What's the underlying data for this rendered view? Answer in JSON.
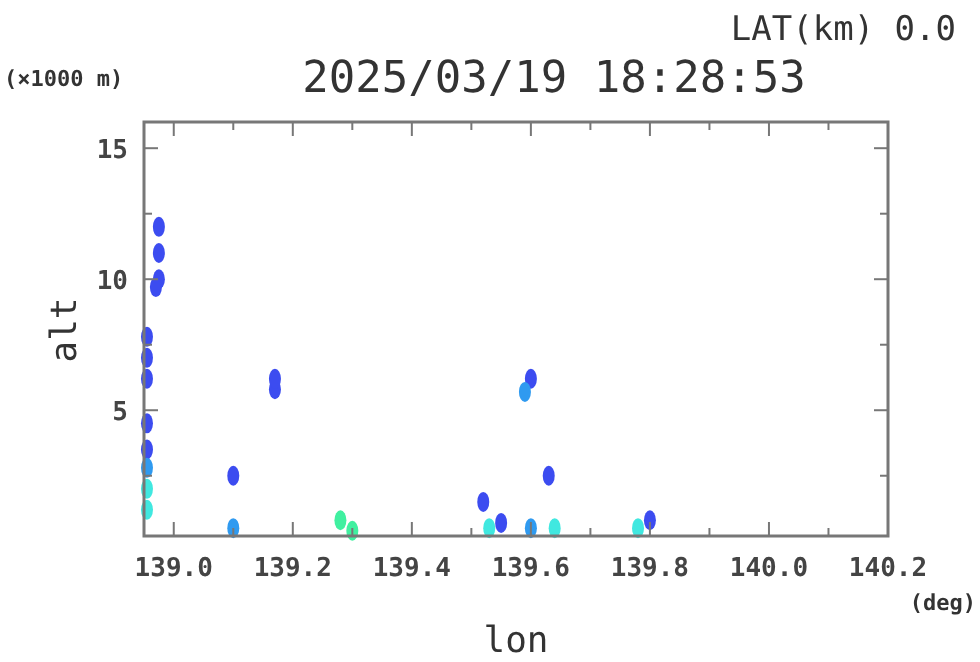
{
  "chart_data": {
    "type": "scatter",
    "title": "2025/03/19 18:28:53",
    "subtitle": "LAT(km) 0.0",
    "xlabel": "lon",
    "ylabel": "alt",
    "annotations": [
      "(×1000 m)",
      "(deg)"
    ],
    "xlim": [
      138.95,
      140.2
    ],
    "ylim": [
      0.2,
      16
    ],
    "xticks": [
      {
        "value": 139.0,
        "label": "139.0"
      },
      {
        "value": 139.1,
        "label": null
      },
      {
        "value": 139.2,
        "label": "139.2"
      },
      {
        "value": 139.3,
        "label": null
      },
      {
        "value": 139.4,
        "label": "139.4"
      },
      {
        "value": 139.5,
        "label": null
      },
      {
        "value": 139.6,
        "label": "139.6"
      },
      {
        "value": 139.7,
        "label": null
      },
      {
        "value": 139.8,
        "label": "139.8"
      },
      {
        "value": 139.9,
        "label": null
      },
      {
        "value": 140.0,
        "label": "140.0"
      },
      {
        "value": 140.1,
        "label": null
      },
      {
        "value": 140.2,
        "label": "140.2"
      }
    ],
    "yticks": [
      {
        "value": 2.5,
        "label": null
      },
      5,
      {
        "value": 7.5,
        "label": null
      },
      10,
      {
        "value": 12.5,
        "label": null
      },
      15
    ],
    "marker": "circle",
    "grid": false,
    "series": [
      {
        "color": "#3c4cf0",
        "x": [
          138.975,
          138.975,
          138.975,
          138.97,
          138.955,
          138.955,
          138.955,
          138.955,
          138.955,
          139.1,
          139.17,
          139.17,
          139.52,
          139.55,
          139.6,
          139.63,
          139.8
        ],
        "values": [
          10,
          11,
          12,
          9.7,
          6.2,
          7,
          7.8,
          4.5,
          3.5,
          2.5,
          5.8,
          6.2,
          1.5,
          0.7,
          6.2,
          2.5,
          0.8
        ]
      },
      {
        "color": "#2f9af0",
        "x": [
          138.955,
          139.1,
          139.59,
          139.6
        ],
        "values": [
          2.8,
          0.5,
          5.7,
          0.5
        ]
      },
      {
        "color": "#40e8e0",
        "x": [
          138.955,
          138.955,
          139.53,
          139.64,
          139.78
        ],
        "values": [
          2,
          1.2,
          0.5,
          0.5,
          0.5
        ]
      },
      {
        "color": "#40f0a0",
        "x": [
          139.28,
          139.3
        ],
        "values": [
          0.8,
          0.4
        ]
      }
    ]
  }
}
